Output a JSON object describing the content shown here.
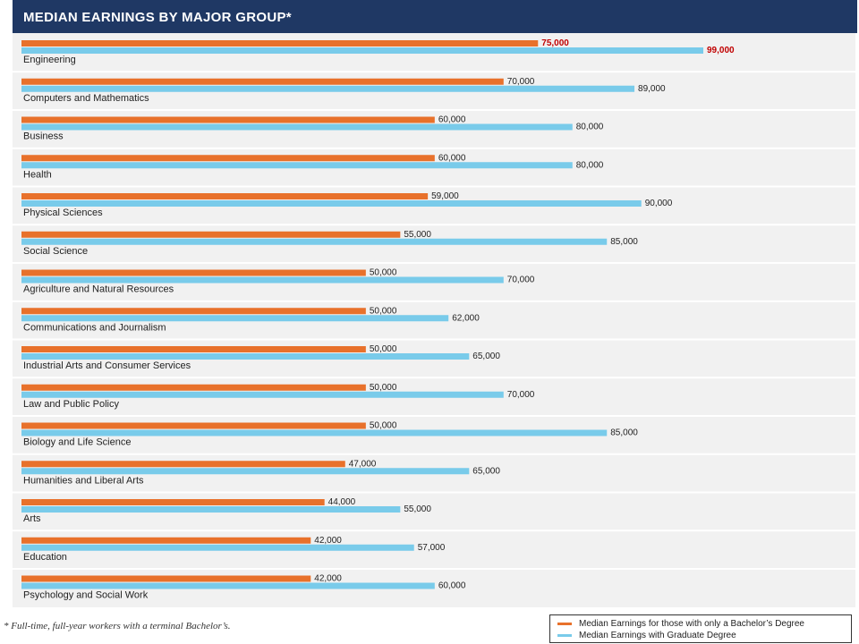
{
  "title": "MEDIAN EARNINGS BY MAJOR GROUP*",
  "footnote": "* Full-time, full-year workers with a terminal Bachelor’s.",
  "legend": {
    "bachelor": "Median Earnings for those with only a Bachelor’s Degree",
    "graduate": "Median Earnings with Graduate Degree"
  },
  "colors": {
    "bachelor": "#e8712b",
    "graduate": "#79cbea",
    "header": "#1f3864",
    "highlight": "#c00000"
  },
  "chart_data": {
    "type": "bar",
    "orientation": "horizontal",
    "categories": [
      "Engineering",
      "Computers and Mathematics",
      "Business",
      "Health",
      "Physical Sciences",
      "Social Science",
      "Agriculture and Natural Resources",
      "Communications and Journalism",
      "Industrial Arts and Consumer Services",
      "Law and Public Policy",
      "Biology and Life Science",
      "Humanities and Liberal Arts",
      "Arts",
      "Education",
      "Psychology and Social Work"
    ],
    "series": [
      {
        "name": "Median Earnings for those with only a Bachelor’s Degree",
        "values": [
          75000,
          70000,
          60000,
          60000,
          59000,
          55000,
          50000,
          50000,
          50000,
          50000,
          50000,
          47000,
          44000,
          42000,
          42000
        ],
        "labels": [
          "75,000",
          "70,000",
          "60,000",
          "60,000",
          "59,000",
          "55,000",
          "50,000",
          "50,000",
          "50,000",
          "50,000",
          "50,000",
          "47,000",
          "44,000",
          "42,000",
          "42,000"
        ]
      },
      {
        "name": "Median Earnings with Graduate Degree",
        "values": [
          99000,
          89000,
          80000,
          80000,
          90000,
          85000,
          70000,
          62000,
          65000,
          70000,
          85000,
          65000,
          55000,
          57000,
          60000
        ],
        "labels": [
          "99,000",
          "89,000",
          "80,000",
          "80,000",
          "90,000",
          "85,000",
          "70,000",
          "62,000",
          "65,000",
          "70,000",
          "85,000",
          "65,000",
          "55,000",
          "57,000",
          "60,000"
        ]
      }
    ],
    "highlight_category": "Engineering",
    "xlim": [
      0,
      100000
    ],
    "grid": false,
    "legend_position": "bottom-right"
  }
}
